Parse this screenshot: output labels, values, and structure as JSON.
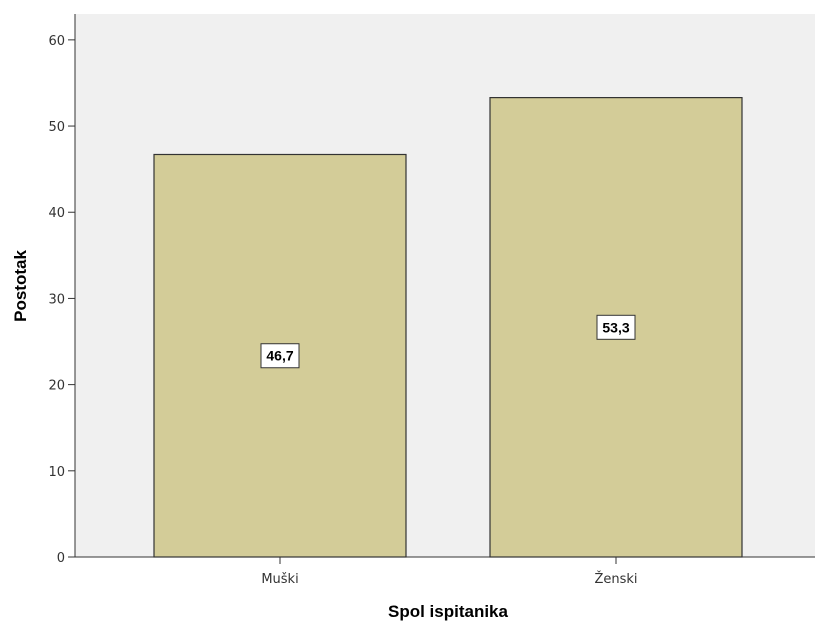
{
  "chart_data": {
    "type": "bar",
    "categories": [
      "Muški",
      "Ženski"
    ],
    "values": [
      46.7,
      53.3
    ],
    "data_labels": [
      "46,7",
      "53,3"
    ],
    "xlabel": "Spol ispitanika",
    "ylabel": "Postotak",
    "ylim": [
      0,
      63
    ],
    "yticks": [
      0,
      10,
      20,
      30,
      40,
      50,
      60
    ],
    "grid": false,
    "colors": {
      "bar_fill": "#d3cc98",
      "bar_stroke": "#333333",
      "plot_background": "#f0f0f0"
    }
  }
}
